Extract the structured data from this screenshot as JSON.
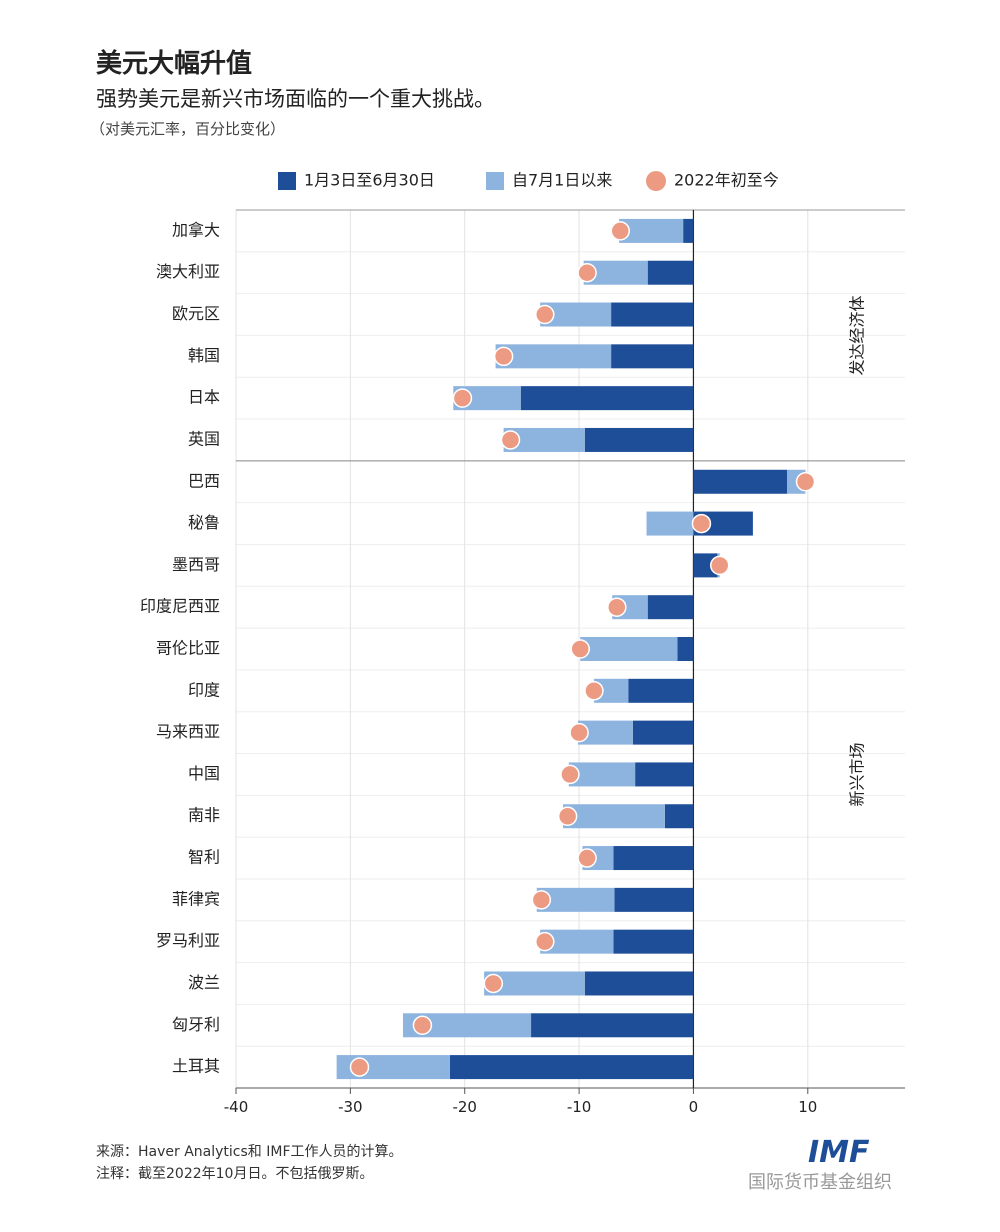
{
  "chart_data": {
    "type": "bar",
    "orientation": "horizontal",
    "stacked": true,
    "title": "美元大幅升值",
    "subtitle": "强势美元是新兴市场面临的一个重大挑战。",
    "unit_note": "（对美元汇率，百分比变化）",
    "categories": [
      "加拿大",
      "澳大利亚",
      "欧元区",
      "韩国",
      "日本",
      "英国",
      "巴西",
      "秘鲁",
      "墨西哥",
      "印度尼西亚",
      "哥伦比亚",
      "印度",
      "马来西亚",
      "中国",
      "南非",
      "智利",
      "菲律宾",
      "罗马利亚",
      "波兰",
      "匈牙利",
      "土耳其"
    ],
    "groups": [
      {
        "label": "发达经济体",
        "size": 6
      },
      {
        "label": "新兴市场",
        "size": 15
      }
    ],
    "series": [
      {
        "name": "1月3日至6月30日",
        "type": "bar",
        "color": "#1f4e98",
        "values": [
          -0.9,
          -4.0,
          -7.2,
          -7.2,
          -15.1,
          -9.5,
          8.2,
          5.2,
          2.1,
          -4.0,
          -1.4,
          -5.7,
          -5.3,
          -5.1,
          -2.5,
          -7.0,
          -6.9,
          -7.0,
          -9.5,
          -14.2,
          -21.3
        ]
      },
      {
        "name": "自7月1日以来",
        "type": "bar",
        "color": "#8db3df",
        "values": [
          -5.6,
          -5.6,
          -6.2,
          -10.1,
          -5.9,
          -7.1,
          1.6,
          -4.1,
          0.2,
          -3.1,
          -8.5,
          -3.0,
          -4.8,
          -5.8,
          -8.9,
          -2.7,
          -6.8,
          -6.4,
          -8.8,
          -11.2,
          -9.9
        ]
      },
      {
        "name": "2022年初至今",
        "type": "dot",
        "color": "#ec9a82",
        "values": [
          -6.4,
          -9.3,
          -13.0,
          -16.6,
          -20.2,
          -16.0,
          9.8,
          0.7,
          2.3,
          -6.7,
          -9.9,
          -8.7,
          -10.0,
          -10.8,
          -11.0,
          -9.3,
          -13.3,
          -13.0,
          -17.5,
          -23.7,
          -29.2
        ]
      }
    ],
    "xlim": [
      -40,
      18.5
    ],
    "xticks": [
      -40,
      -30,
      -20,
      -10,
      0,
      10
    ],
    "grid": true,
    "legend": "top",
    "source": "来源：Haver Analytics和 IMF工作人员的计算。",
    "note": "注释：截至2022年10月日。不包括俄罗斯。",
    "logo": "IMF",
    "watermark": "国际货币基金组织"
  }
}
